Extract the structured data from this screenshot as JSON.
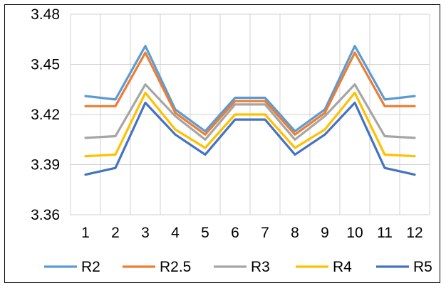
{
  "chart_data": {
    "type": "line",
    "title": "",
    "xlabel": "",
    "ylabel": "",
    "categories": [
      "1",
      "2",
      "3",
      "4",
      "5",
      "6",
      "7",
      "8",
      "9",
      "10",
      "11",
      "12"
    ],
    "ylim": [
      3.36,
      3.48
    ],
    "yticks": [
      "3.36",
      "3.39",
      "3.42",
      "3.45",
      "3.48"
    ],
    "grid": true,
    "legend_position": "bottom",
    "series": [
      {
        "name": "R2",
        "color": "#5B9BD5",
        "values": [
          3.431,
          3.429,
          3.461,
          3.423,
          3.41,
          3.43,
          3.43,
          3.41,
          3.423,
          3.461,
          3.429,
          3.431
        ]
      },
      {
        "name": "R2.5",
        "color": "#ED7D31",
        "values": [
          3.425,
          3.425,
          3.457,
          3.421,
          3.408,
          3.428,
          3.428,
          3.408,
          3.421,
          3.457,
          3.425,
          3.425
        ]
      },
      {
        "name": "R3",
        "color": "#A5A5A5",
        "values": [
          3.406,
          3.407,
          3.438,
          3.419,
          3.405,
          3.426,
          3.426,
          3.405,
          3.419,
          3.438,
          3.407,
          3.406
        ]
      },
      {
        "name": "R4",
        "color": "#FFC000",
        "values": [
          3.395,
          3.396,
          3.433,
          3.411,
          3.4,
          3.42,
          3.42,
          3.4,
          3.411,
          3.433,
          3.396,
          3.395
        ]
      },
      {
        "name": "R5",
        "color": "#4472C4",
        "values": [
          3.384,
          3.388,
          3.427,
          3.408,
          3.396,
          3.417,
          3.417,
          3.396,
          3.408,
          3.427,
          3.388,
          3.384
        ]
      }
    ]
  }
}
